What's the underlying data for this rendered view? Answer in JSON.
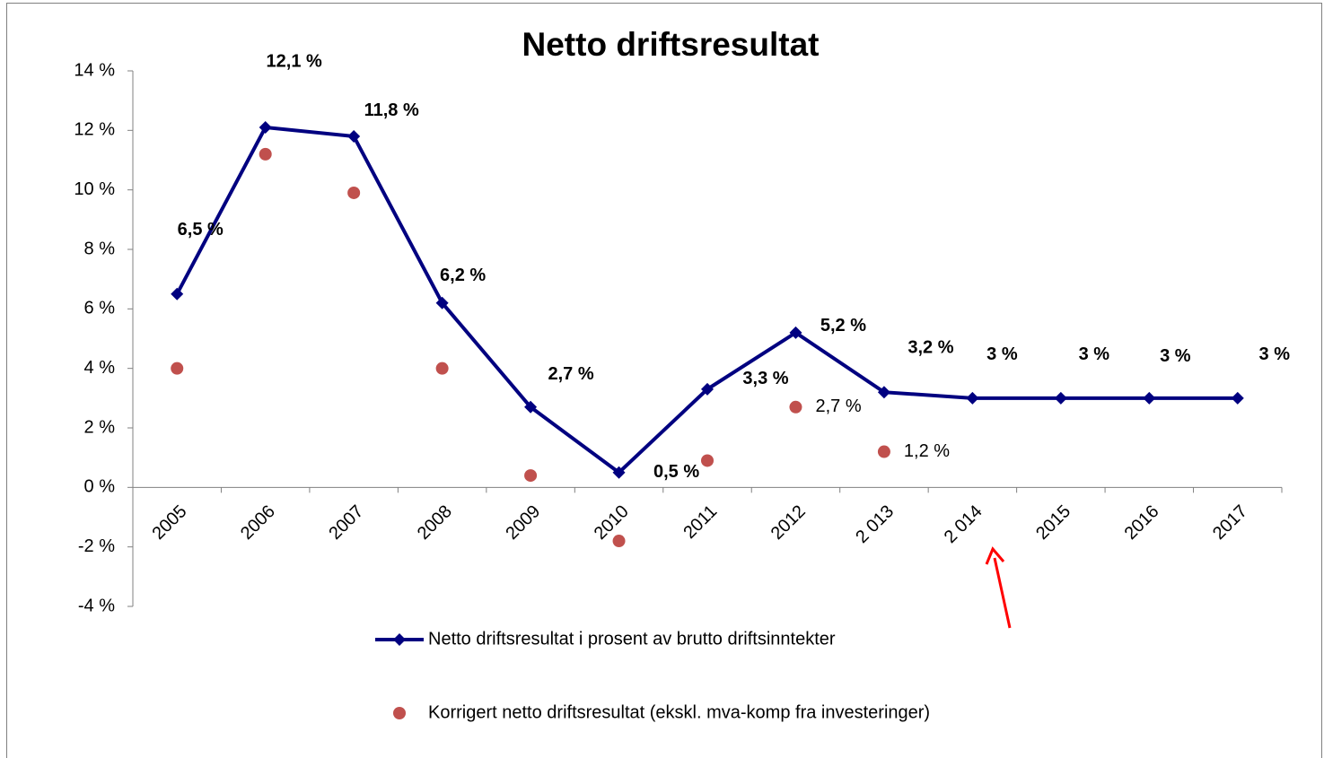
{
  "chart_data": {
    "type": "line",
    "title": "Netto driftsresultat",
    "categories": [
      "2005",
      "2006",
      "2007",
      "2008",
      "2009",
      "2010",
      "2011",
      "2012",
      "2 013",
      "2 014",
      "2015",
      "2016",
      "2017"
    ],
    "series": [
      {
        "name": "Netto driftsresultat i prosent av brutto driftsinntekter",
        "color": "#000080",
        "type": "line",
        "values": [
          6.5,
          12.1,
          11.8,
          6.2,
          2.7,
          0.5,
          3.3,
          5.2,
          3.2,
          3,
          3,
          3,
          3
        ],
        "value_labels": [
          "6,5 %",
          "12,1 %",
          "11,8 %",
          "6,2 %",
          "2,7 %",
          "0,5 %",
          "3,3 %",
          "5,2 %",
          "3,2 %",
          "3 %",
          "3 %",
          "3 %",
          "3 %"
        ]
      },
      {
        "name": "Korrigert netto driftsresultat (ekskl. mva-komp fra investeringer)",
        "color": "#c0504d",
        "type": "scatter",
        "values": [
          4.0,
          11.2,
          9.9,
          4.0,
          0.4,
          -1.8,
          0.9,
          2.7,
          1.2,
          null,
          null,
          null,
          null
        ],
        "value_labels": [
          null,
          null,
          null,
          null,
          null,
          null,
          null,
          "2,7 %",
          "1,2 %",
          null,
          null,
          null,
          null
        ]
      }
    ],
    "ylim": [
      -4,
      14
    ],
    "yticks": [
      {
        "value": -4,
        "label": "-4 %"
      },
      {
        "value": -2,
        "label": "-2 %"
      },
      {
        "value": 0,
        "label": "0 %"
      },
      {
        "value": 2,
        "label": "2 %"
      },
      {
        "value": 4,
        "label": "4 %"
      },
      {
        "value": 6,
        "label": "6 %"
      },
      {
        "value": 8,
        "label": "8 %"
      },
      {
        "value": 10,
        "label": "10 %"
      },
      {
        "value": 12,
        "label": "12 %"
      },
      {
        "value": 14,
        "label": "14 %"
      }
    ],
    "grid": false
  }
}
